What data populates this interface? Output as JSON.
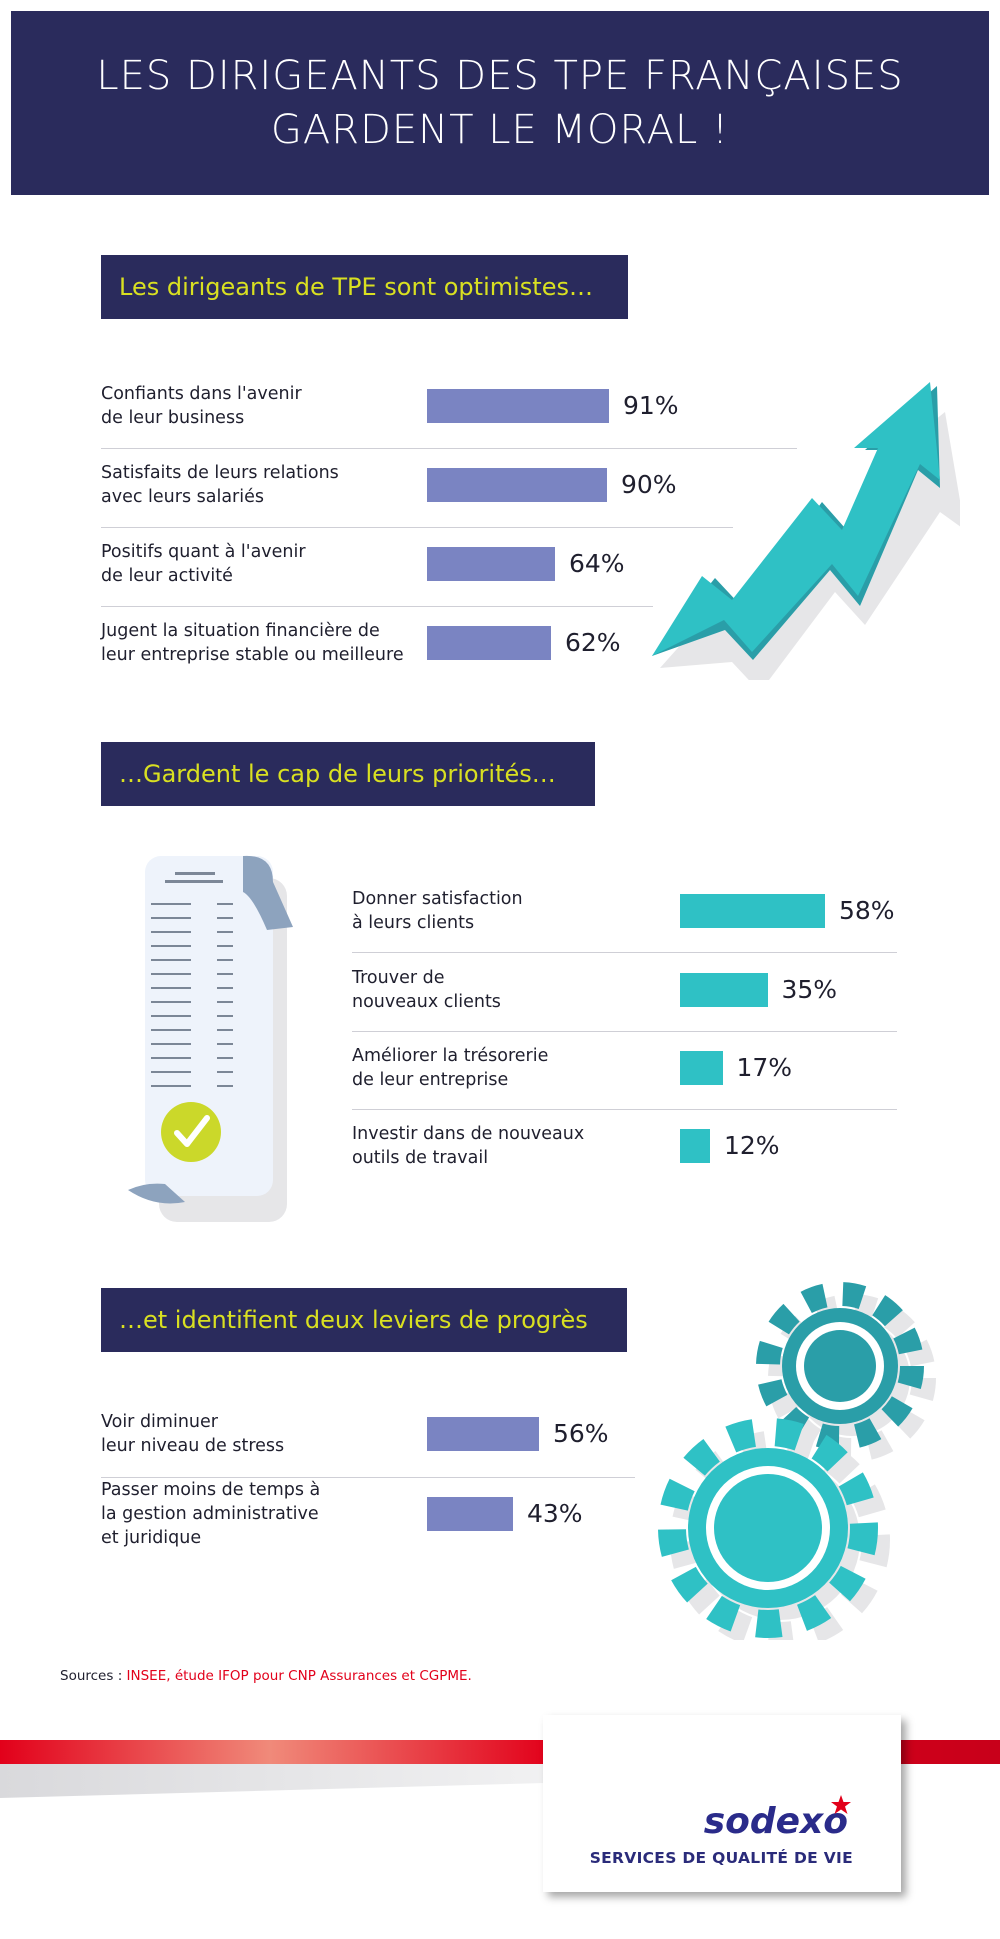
{
  "banner": {
    "line1": "LES DIRIGEANTS DES TPE FRANÇAISES",
    "line2": "GARDENT LE MORAL !"
  },
  "sections": [
    {
      "heading": "Les dirigeants de TPE sont optimistes…"
    },
    {
      "heading": "…Gardent le cap de leurs priorités…"
    },
    {
      "heading": "…et identifient deux leviers de progrès"
    }
  ],
  "chart_data": [
    {
      "type": "bar",
      "orientation": "horizontal",
      "title": "Les dirigeants de TPE sont optimistes…",
      "categories": [
        [
          "Confiants dans l'avenir",
          "de leur business"
        ],
        [
          "Satisfaits de leurs relations",
          "avec leurs salariés"
        ],
        [
          "Positifs quant à l'avenir",
          "de leur activité"
        ],
        [
          "Jugent la situation financière de",
          "leur entreprise stable ou meilleure"
        ]
      ],
      "values": [
        91,
        90,
        64,
        62
      ],
      "value_labels": [
        "91%",
        "90%",
        "64%",
        "62%"
      ],
      "unit": "%",
      "color": "#7a84c2"
    },
    {
      "type": "bar",
      "orientation": "horizontal",
      "title": "…Gardent le cap de leurs priorités…",
      "categories": [
        [
          "Donner satisfaction",
          "à leurs clients"
        ],
        [
          "Trouver de",
          "nouveaux clients"
        ],
        [
          "Améliorer la trésorerie",
          "de leur entreprise"
        ],
        [
          "Investir dans de nouveaux",
          "outils de travail"
        ]
      ],
      "values": [
        58,
        35,
        17,
        12
      ],
      "value_labels": [
        "58%",
        "35%",
        "17%",
        "12%"
      ],
      "unit": "%",
      "color": "#2fc1c5"
    },
    {
      "type": "bar",
      "orientation": "horizontal",
      "title": "…et identifient deux leviers de progrès",
      "categories": [
        [
          "Voir diminuer",
          "leur niveau de stress"
        ],
        [
          "Passer moins de temps à",
          "la gestion administrative",
          "et juridique"
        ]
      ],
      "values": [
        56,
        43
      ],
      "value_labels": [
        "56%",
        "43%"
      ],
      "unit": "%",
      "color": "#7a84c2"
    }
  ],
  "sources": {
    "prefix": "Sources : ",
    "text": "INSEE, étude IFOP pour CNP Assurances et CGPME."
  },
  "logo": {
    "word": "sodexo",
    "tagline": "SERVICES DE QUALITÉ DE VIE"
  },
  "colors": {
    "navy": "#2a2b5c",
    "yellow": "#d9e021",
    "purple_bar": "#7a84c2",
    "teal": "#2fc1c5",
    "red": "#e2001a"
  },
  "icons": [
    "rising-arrow-icon",
    "checklist-receipt-icon",
    "gears-icon"
  ]
}
